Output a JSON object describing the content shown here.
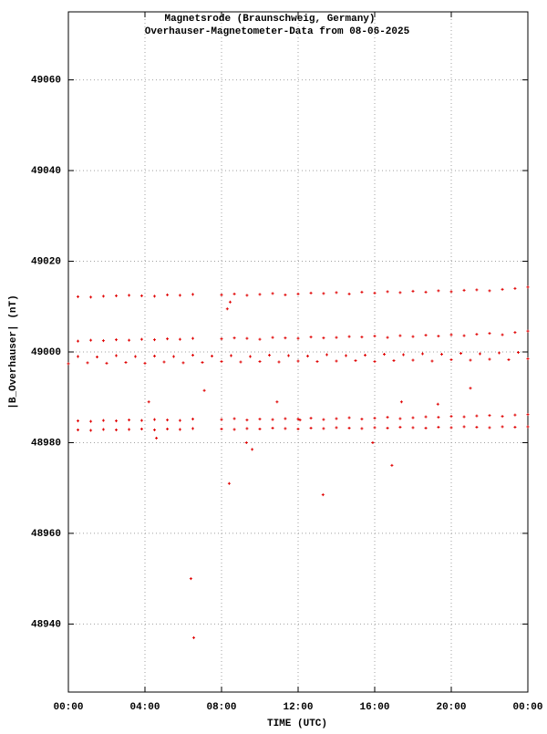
{
  "chart_data": {
    "type": "scatter",
    "title": "Magnetsrode (Braunschweig, Germany)",
    "subtitle": "Overhauser-Magnetometer-Data from 08-06-2025",
    "x_label": "TIME (UTC)",
    "y_label": "|B_Overhauser| (nT)",
    "color": "#e00000",
    "grid": true,
    "xlim": [
      0,
      24
    ],
    "xticks": [
      {
        "value": 0,
        "label": "00:00"
      },
      {
        "value": 4,
        "label": "04:00"
      },
      {
        "value": 8,
        "label": "08:00"
      },
      {
        "value": 12,
        "label": "12:00"
      },
      {
        "value": 16,
        "label": "16:00"
      },
      {
        "value": 20,
        "label": "20:00"
      },
      {
        "value": 24,
        "label": "00:00"
      }
    ],
    "ylim": [
      48925,
      49075
    ],
    "yticks": [
      48940,
      48960,
      48980,
      49000,
      49020,
      49040,
      49060
    ],
    "x": [
      0.5,
      1.17,
      1.83,
      2.5,
      3.17,
      3.83,
      4.5,
      5.17,
      5.83,
      6.5,
      8.0,
      8.67,
      9.33,
      10.0,
      10.67,
      11.33,
      12.0,
      12.67,
      13.33,
      14.0,
      14.67,
      15.33,
      16.0,
      16.67,
      17.33,
      18.0,
      18.67,
      19.33,
      20.0,
      20.67,
      21.33,
      22.0,
      22.67,
      23.33,
      24.0,
      0.5,
      1.17,
      1.83,
      2.5,
      3.17,
      3.83,
      4.5,
      5.17,
      5.83,
      6.5,
      8.0,
      8.67,
      9.33,
      10.0,
      10.67,
      11.33,
      12.0,
      12.67,
      13.33,
      14.0,
      14.67,
      15.33,
      16.0,
      16.67,
      17.33,
      18.0,
      18.67,
      19.33,
      20.0,
      20.67,
      21.33,
      22.0,
      22.67,
      23.33,
      24.0,
      0.5,
      1.17,
      1.83,
      2.5,
      3.17,
      3.83,
      4.5,
      5.17,
      5.83,
      6.5,
      8.0,
      8.67,
      9.33,
      10.0,
      10.67,
      11.33,
      12.0,
      12.67,
      13.33,
      14.0,
      14.67,
      15.33,
      16.0,
      16.67,
      17.33,
      18.0,
      18.67,
      19.33,
      20.0,
      20.67,
      21.33,
      22.0,
      22.67,
      23.33,
      24.0,
      0.5,
      1.17,
      1.83,
      2.5,
      3.17,
      3.83,
      4.5,
      5.17,
      5.83,
      6.5,
      8.0,
      8.67,
      9.33,
      10.0,
      10.67,
      11.33,
      12.0,
      12.67,
      13.33,
      14.0,
      14.67,
      15.33,
      16.0,
      16.67,
      17.33,
      18.0,
      18.67,
      19.33,
      20.0,
      20.67,
      21.33,
      22.0,
      22.67,
      23.33,
      24.0,
      0,
      0.5,
      1,
      1.5,
      2,
      2.5,
      3,
      3.5,
      4,
      4.5,
      5,
      5.5,
      6,
      6.5,
      7,
      7.5,
      8,
      8.5,
      9,
      9.5,
      10,
      10.5,
      11,
      11.5,
      12,
      12.5,
      13,
      13.5,
      14,
      14.5,
      15,
      15.5,
      16,
      16.5,
      17,
      17.5,
      18,
      18.5,
      19,
      19.5,
      20,
      20.5,
      21,
      21.5,
      22,
      22.5,
      23,
      23.5,
      24,
      4.2,
      4.6,
      6.4,
      6.55,
      7.1,
      8.4,
      9.3,
      9.6,
      10.9,
      12.1,
      13.3,
      15.9,
      16.9,
      17.4,
      19.3,
      21.0,
      8.3,
      8.45
    ],
    "values": [
      49012.2,
      49012.1,
      49012.3,
      49012.4,
      49012.5,
      49012.4,
      49012.3,
      49012.6,
      49012.5,
      49012.7,
      49012.6,
      49012.8,
      49012.5,
      49012.7,
      49012.9,
      49012.6,
      49012.8,
      49013.0,
      49012.9,
      49013.1,
      49012.8,
      49013.2,
      49013.0,
      49013.3,
      49013.1,
      49013.4,
      49013.2,
      49013.5,
      49013.3,
      49013.6,
      49013.7,
      49013.5,
      49013.8,
      49014.0,
      49014.3,
      49002.4,
      49002.6,
      49002.5,
      49002.7,
      49002.6,
      49002.8,
      49002.7,
      49002.9,
      49002.8,
      49003.0,
      49002.9,
      49003.1,
      49003.0,
      49002.8,
      49003.2,
      49003.1,
      49003.0,
      49003.3,
      49003.1,
      49003.2,
      49003.4,
      49003.3,
      49003.5,
      49003.2,
      49003.6,
      49003.4,
      49003.7,
      49003.5,
      49003.8,
      49003.6,
      49003.9,
      49004.1,
      49003.8,
      49004.3,
      49004.6,
      48984.8,
      48984.7,
      48984.9,
      48984.8,
      48985.0,
      48984.9,
      48985.1,
      48985.0,
      48984.9,
      48985.2,
      48985.1,
      48985.3,
      48985.0,
      48985.2,
      48985.1,
      48985.3,
      48985.2,
      48985.4,
      48985.1,
      48985.3,
      48985.5,
      48985.2,
      48985.4,
      48985.6,
      48985.3,
      48985.5,
      48985.7,
      48985.6,
      48985.8,
      48985.7,
      48985.9,
      48986.0,
      48985.8,
      48986.1,
      48986.2,
      48982.8,
      48982.7,
      48982.9,
      48982.8,
      48982.9,
      48983.0,
      48982.8,
      48983.0,
      48982.9,
      48983.1,
      48983.0,
      48982.9,
      48983.1,
      48983.0,
      48983.2,
      48983.1,
      48983.0,
      48983.2,
      48983.1,
      48983.3,
      48983.2,
      48983.1,
      48983.3,
      48983.2,
      48983.4,
      48983.3,
      48983.2,
      48983.4,
      48983.3,
      48983.5,
      48983.4,
      48983.3,
      48983.5,
      48983.4,
      48983.5,
      48997.4,
      48999.0,
      48997.6,
      48998.9,
      48997.5,
      48999.2,
      48997.7,
      48999.0,
      48997.5,
      48999.1,
      48997.8,
      48999.0,
      48997.6,
      48999.3,
      48997.7,
      48999.1,
      48997.9,
      48999.2,
      48997.8,
      48999.0,
      48997.9,
      48999.3,
      48997.8,
      48999.2,
      48998.0,
      48999.1,
      48997.9,
      48999.4,
      48998.0,
      48999.2,
      48998.1,
      48999.3,
      48997.9,
      48999.5,
      48998.1,
      48999.4,
      48998.2,
      48999.6,
      48998.0,
      48999.5,
      48998.3,
      48999.7,
      48998.2,
      48999.6,
      48998.4,
      48999.8,
      48998.3,
      48999.9,
      48998.5,
      48989.0,
      48981.0,
      48950.0,
      48937.0,
      48991.5,
      48971.0,
      48980.0,
      48978.5,
      48989.0,
      48985.0,
      48968.5,
      48980.0,
      48975.0,
      48989.0,
      48988.5,
      48992.0,
      49009.5,
      49011.0
    ]
  }
}
